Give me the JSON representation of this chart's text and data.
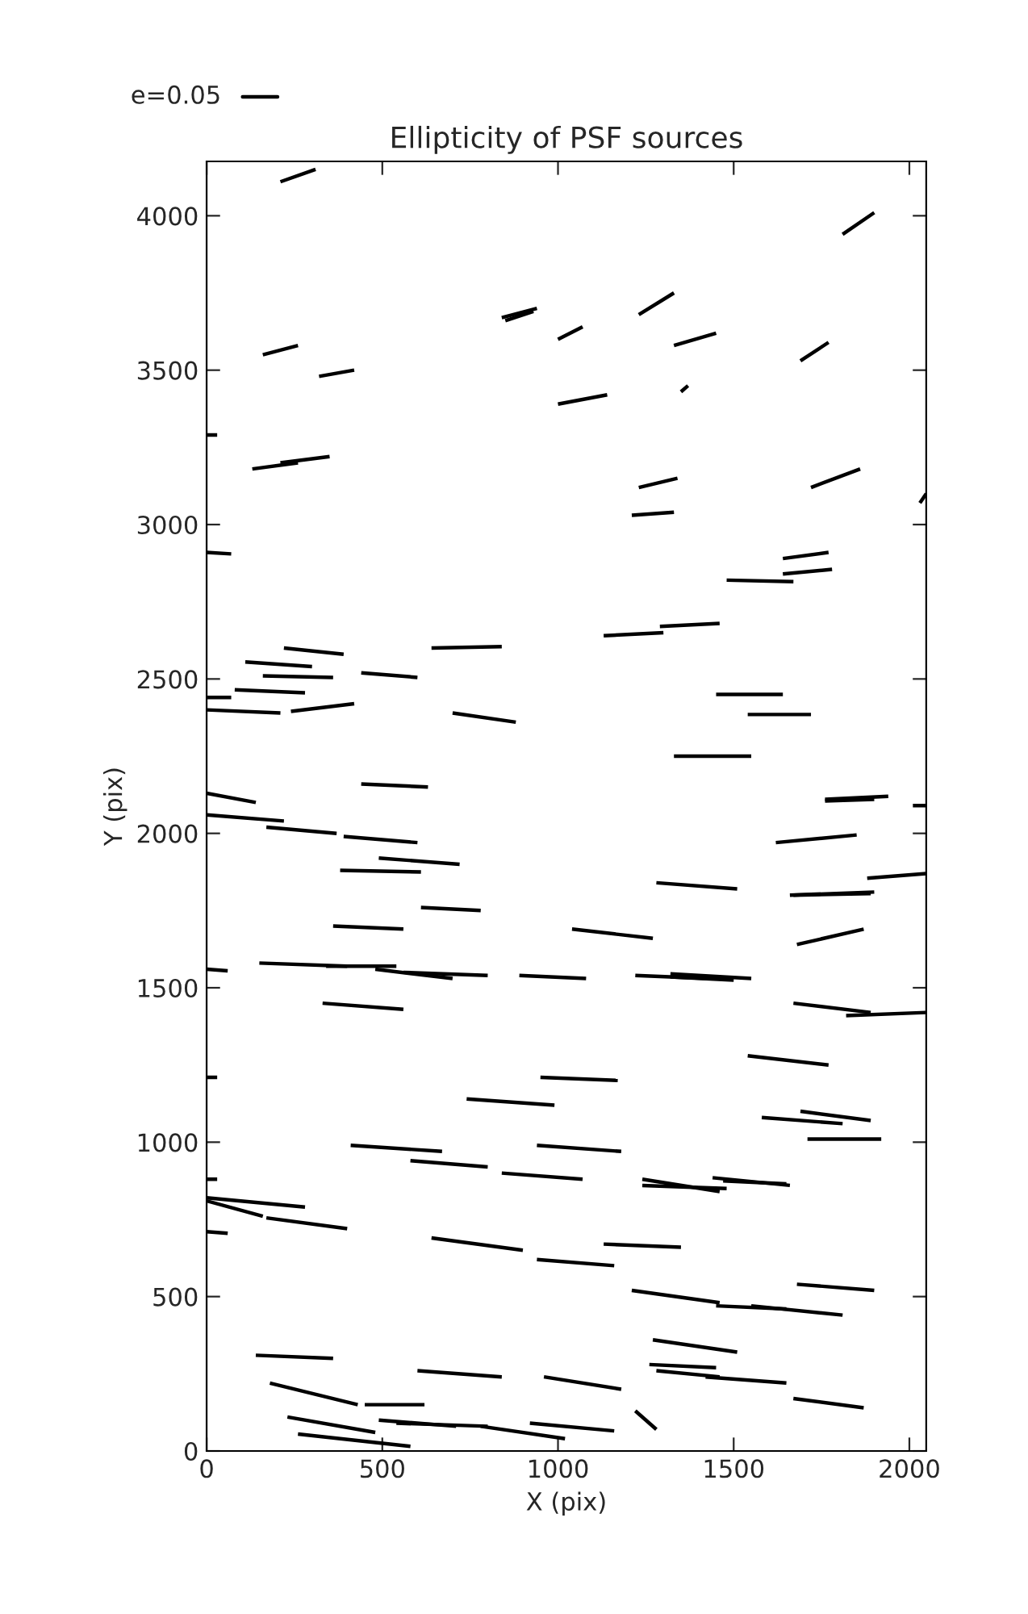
{
  "chart_data": {
    "type": "line",
    "title": "Ellipticity of PSF sources",
    "xlabel": "X (pix)",
    "ylabel": "Y (pix)",
    "xlim": [
      0,
      2048
    ],
    "ylim": [
      0,
      4176
    ],
    "xticks": [
      0,
      500,
      1000,
      1500,
      2000
    ],
    "yticks": [
      0,
      500,
      1000,
      1500,
      2000,
      2500,
      3000,
      3500,
      4000
    ],
    "grid": false,
    "annotations": [
      "e=0.05"
    ],
    "series": [
      {
        "color": "#000000",
        "x": [
          210,
          310
        ],
        "values": [
          4110,
          4150
        ]
      },
      {
        "color": "#000000",
        "x": [
          1810,
          1900
        ],
        "values": [
          3940,
          4010
        ]
      },
      {
        "color": "#000000",
        "x": [
          840,
          940
        ],
        "values": [
          3670,
          3700
        ]
      },
      {
        "color": "#000000",
        "x": [
          850,
          930
        ],
        "values": [
          3660,
          3690
        ]
      },
      {
        "color": "#000000",
        "x": [
          1000,
          1070
        ],
        "values": [
          3600,
          3640
        ]
      },
      {
        "color": "#000000",
        "x": [
          1230,
          1330
        ],
        "values": [
          3680,
          3750
        ]
      },
      {
        "color": "#000000",
        "x": [
          1330,
          1450
        ],
        "values": [
          3580,
          3620
        ]
      },
      {
        "color": "#000000",
        "x": [
          160,
          260
        ],
        "values": [
          3550,
          3580
        ]
      },
      {
        "color": "#000000",
        "x": [
          320,
          420
        ],
        "values": [
          3480,
          3500
        ]
      },
      {
        "color": "#000000",
        "x": [
          1000,
          1140
        ],
        "values": [
          3390,
          3420
        ]
      },
      {
        "color": "#000000",
        "x": [
          1350,
          1370
        ],
        "values": [
          3430,
          3450
        ]
      },
      {
        "color": "#000000",
        "x": [
          1690,
          1770
        ],
        "values": [
          3530,
          3590
        ]
      },
      {
        "color": "#000000",
        "x": [
          0,
          30
        ],
        "values": [
          3290,
          3290
        ]
      },
      {
        "color": "#000000",
        "x": [
          130,
          260
        ],
        "values": [
          3180,
          3200
        ]
      },
      {
        "color": "#000000",
        "x": [
          210,
          350
        ],
        "values": [
          3200,
          3220
        ]
      },
      {
        "color": "#000000",
        "x": [
          1230,
          1340
        ],
        "values": [
          3120,
          3150
        ]
      },
      {
        "color": "#000000",
        "x": [
          1720,
          1860
        ],
        "values": [
          3120,
          3180
        ]
      },
      {
        "color": "#000000",
        "x": [
          2030,
          2048
        ],
        "values": [
          3070,
          3100
        ]
      },
      {
        "color": "#000000",
        "x": [
          1210,
          1330
        ],
        "values": [
          3030,
          3040
        ]
      },
      {
        "color": "#000000",
        "x": [
          0,
          70
        ],
        "values": [
          2910,
          2905
        ]
      },
      {
        "color": "#000000",
        "x": [
          1480,
          1670
        ],
        "values": [
          2820,
          2815
        ]
      },
      {
        "color": "#000000",
        "x": [
          1640,
          1770
        ],
        "values": [
          2890,
          2910
        ]
      },
      {
        "color": "#000000",
        "x": [
          1640,
          1780
        ],
        "values": [
          2840,
          2855
        ]
      },
      {
        "color": "#000000",
        "x": [
          640,
          840
        ],
        "values": [
          2600,
          2605
        ]
      },
      {
        "color": "#000000",
        "x": [
          1130,
          1300
        ],
        "values": [
          2640,
          2650
        ]
      },
      {
        "color": "#000000",
        "x": [
          1290,
          1460
        ],
        "values": [
          2670,
          2680
        ]
      },
      {
        "color": "#000000",
        "x": [
          220,
          390
        ],
        "values": [
          2600,
          2580
        ]
      },
      {
        "color": "#000000",
        "x": [
          110,
          300
        ],
        "values": [
          2555,
          2540
        ]
      },
      {
        "color": "#000000",
        "x": [
          160,
          360
        ],
        "values": [
          2510,
          2505
        ]
      },
      {
        "color": "#000000",
        "x": [
          440,
          600
        ],
        "values": [
          2520,
          2505
        ]
      },
      {
        "color": "#000000",
        "x": [
          0,
          70
        ],
        "values": [
          2440,
          2440
        ]
      },
      {
        "color": "#000000",
        "x": [
          80,
          280
        ],
        "values": [
          2465,
          2455
        ]
      },
      {
        "color": "#000000",
        "x": [
          0,
          210
        ],
        "values": [
          2400,
          2390
        ]
      },
      {
        "color": "#000000",
        "x": [
          240,
          420
        ],
        "values": [
          2395,
          2420
        ]
      },
      {
        "color": "#000000",
        "x": [
          700,
          880
        ],
        "values": [
          2390,
          2360
        ]
      },
      {
        "color": "#000000",
        "x": [
          1450,
          1640
        ],
        "values": [
          2450,
          2450
        ]
      },
      {
        "color": "#000000",
        "x": [
          1540,
          1720
        ],
        "values": [
          2385,
          2385
        ]
      },
      {
        "color": "#000000",
        "x": [
          1330,
          1550
        ],
        "values": [
          2250,
          2250
        ]
      },
      {
        "color": "#000000",
        "x": [
          440,
          630
        ],
        "values": [
          2160,
          2150
        ]
      },
      {
        "color": "#000000",
        "x": [
          0,
          140
        ],
        "values": [
          2130,
          2100
        ]
      },
      {
        "color": "#000000",
        "x": [
          1760,
          1940
        ],
        "values": [
          2110,
          2120
        ]
      },
      {
        "color": "#000000",
        "x": [
          1760,
          1900
        ],
        "values": [
          2105,
          2110
        ]
      },
      {
        "color": "#000000",
        "x": [
          2010,
          2048
        ],
        "values": [
          2090,
          2090
        ]
      },
      {
        "color": "#000000",
        "x": [
          0,
          220
        ],
        "values": [
          2060,
          2040
        ]
      },
      {
        "color": "#000000",
        "x": [
          170,
          370
        ],
        "values": [
          2020,
          2000
        ]
      },
      {
        "color": "#000000",
        "x": [
          390,
          600
        ],
        "values": [
          1990,
          1970
        ]
      },
      {
        "color": "#000000",
        "x": [
          490,
          720
        ],
        "values": [
          1920,
          1900
        ]
      },
      {
        "color": "#000000",
        "x": [
          380,
          610
        ],
        "values": [
          1880,
          1875
        ]
      },
      {
        "color": "#000000",
        "x": [
          1280,
          1510
        ],
        "values": [
          1840,
          1820
        ]
      },
      {
        "color": "#000000",
        "x": [
          1620,
          1850
        ],
        "values": [
          1970,
          1995
        ]
      },
      {
        "color": "#000000",
        "x": [
          1880,
          2048
        ],
        "values": [
          1855,
          1870
        ]
      },
      {
        "color": "#000000",
        "x": [
          1660,
          1900
        ],
        "values": [
          1800,
          1810
        ]
      },
      {
        "color": "#000000",
        "x": [
          1670,
          1890
        ],
        "values": [
          1800,
          1805
        ]
      },
      {
        "color": "#000000",
        "x": [
          610,
          780
        ],
        "values": [
          1760,
          1750
        ]
      },
      {
        "color": "#000000",
        "x": [
          360,
          560
        ],
        "values": [
          1700,
          1690
        ]
      },
      {
        "color": "#000000",
        "x": [
          1040,
          1270
        ],
        "values": [
          1690,
          1660
        ]
      },
      {
        "color": "#000000",
        "x": [
          1680,
          1870
        ],
        "values": [
          1640,
          1690
        ]
      },
      {
        "color": "#000000",
        "x": [
          0,
          60
        ],
        "values": [
          1560,
          1555
        ]
      },
      {
        "color": "#000000",
        "x": [
          150,
          400
        ],
        "values": [
          1580,
          1570
        ]
      },
      {
        "color": "#000000",
        "x": [
          340,
          540
        ],
        "values": [
          1570,
          1570
        ]
      },
      {
        "color": "#000000",
        "x": [
          480,
          700
        ],
        "values": [
          1560,
          1530
        ]
      },
      {
        "color": "#000000",
        "x": [
          560,
          800
        ],
        "values": [
          1550,
          1540
        ]
      },
      {
        "color": "#000000",
        "x": [
          890,
          1080
        ],
        "values": [
          1540,
          1530
        ]
      },
      {
        "color": "#000000",
        "x": [
          1220,
          1430
        ],
        "values": [
          1540,
          1530
        ]
      },
      {
        "color": "#000000",
        "x": [
          1320,
          1550
        ],
        "values": [
          1545,
          1530
        ]
      },
      {
        "color": "#000000",
        "x": [
          1320,
          1500
        ],
        "values": [
          1535,
          1525
        ]
      },
      {
        "color": "#000000",
        "x": [
          1670,
          1890
        ],
        "values": [
          1450,
          1420
        ]
      },
      {
        "color": "#000000",
        "x": [
          1820,
          2048
        ],
        "values": [
          1410,
          1420
        ]
      },
      {
        "color": "#000000",
        "x": [
          330,
          560
        ],
        "values": [
          1450,
          1430
        ]
      },
      {
        "color": "#000000",
        "x": [
          0,
          30
        ],
        "values": [
          1210,
          1210
        ]
      },
      {
        "color": "#000000",
        "x": [
          950,
          1170
        ],
        "values": [
          1210,
          1200
        ]
      },
      {
        "color": "#000000",
        "x": [
          1540,
          1770
        ],
        "values": [
          1280,
          1250
        ]
      },
      {
        "color": "#000000",
        "x": [
          740,
          990
        ],
        "values": [
          1140,
          1120
        ]
      },
      {
        "color": "#000000",
        "x": [
          1580,
          1810
        ],
        "values": [
          1080,
          1060
        ]
      },
      {
        "color": "#000000",
        "x": [
          1690,
          1890
        ],
        "values": [
          1100,
          1070
        ]
      },
      {
        "color": "#000000",
        "x": [
          1710,
          1920
        ],
        "values": [
          1010,
          1010
        ]
      },
      {
        "color": "#000000",
        "x": [
          410,
          670
        ],
        "values": [
          990,
          970
        ]
      },
      {
        "color": "#000000",
        "x": [
          580,
          800
        ],
        "values": [
          940,
          920
        ]
      },
      {
        "color": "#000000",
        "x": [
          940,
          1180
        ],
        "values": [
          990,
          970
        ]
      },
      {
        "color": "#000000",
        "x": [
          840,
          1070
        ],
        "values": [
          900,
          880
        ]
      },
      {
        "color": "#000000",
        "x": [
          1240,
          1460
        ],
        "values": [
          880,
          840
        ]
      },
      {
        "color": "#000000",
        "x": [
          1240,
          1480
        ],
        "values": [
          860,
          850
        ]
      },
      {
        "color": "#000000",
        "x": [
          1440,
          1660
        ],
        "values": [
          885,
          860
        ]
      },
      {
        "color": "#000000",
        "x": [
          1470,
          1650
        ],
        "values": [
          875,
          865
        ]
      },
      {
        "color": "#000000",
        "x": [
          0,
          30
        ],
        "values": [
          880,
          880
        ]
      },
      {
        "color": "#000000",
        "x": [
          0,
          280
        ],
        "values": [
          820,
          790
        ]
      },
      {
        "color": "#000000",
        "x": [
          0,
          160
        ],
        "values": [
          810,
          760
        ]
      },
      {
        "color": "#000000",
        "x": [
          170,
          400
        ],
        "values": [
          755,
          720
        ]
      },
      {
        "color": "#000000",
        "x": [
          0,
          60
        ],
        "values": [
          710,
          705
        ]
      },
      {
        "color": "#000000",
        "x": [
          640,
          900
        ],
        "values": [
          690,
          650
        ]
      },
      {
        "color": "#000000",
        "x": [
          940,
          1160
        ],
        "values": [
          620,
          600
        ]
      },
      {
        "color": "#000000",
        "x": [
          1130,
          1350
        ],
        "values": [
          670,
          660
        ]
      },
      {
        "color": "#000000",
        "x": [
          1210,
          1460
        ],
        "values": [
          520,
          480
        ]
      },
      {
        "color": "#000000",
        "x": [
          1450,
          1650
        ],
        "values": [
          470,
          460
        ]
      },
      {
        "color": "#000000",
        "x": [
          1550,
          1810
        ],
        "values": [
          470,
          440
        ]
      },
      {
        "color": "#000000",
        "x": [
          1680,
          1900
        ],
        "values": [
          540,
          520
        ]
      },
      {
        "color": "#000000",
        "x": [
          140,
          360
        ],
        "values": [
          310,
          300
        ]
      },
      {
        "color": "#000000",
        "x": [
          1270,
          1510
        ],
        "values": [
          360,
          320
        ]
      },
      {
        "color": "#000000",
        "x": [
          1260,
          1450
        ],
        "values": [
          280,
          270
        ]
      },
      {
        "color": "#000000",
        "x": [
          1280,
          1460
        ],
        "values": [
          260,
          240
        ]
      },
      {
        "color": "#000000",
        "x": [
          1420,
          1650
        ],
        "values": [
          240,
          220
        ]
      },
      {
        "color": "#000000",
        "x": [
          1670,
          1870
        ],
        "values": [
          170,
          140
        ]
      },
      {
        "color": "#000000",
        "x": [
          180,
          430
        ],
        "values": [
          220,
          150
        ]
      },
      {
        "color": "#000000",
        "x": [
          450,
          620
        ],
        "values": [
          150,
          150
        ]
      },
      {
        "color": "#000000",
        "x": [
          600,
          840
        ],
        "values": [
          260,
          240
        ]
      },
      {
        "color": "#000000",
        "x": [
          960,
          1180
        ],
        "values": [
          240,
          200
        ]
      },
      {
        "color": "#000000",
        "x": [
          230,
          480
        ],
        "values": [
          110,
          60
        ]
      },
      {
        "color": "#000000",
        "x": [
          490,
          710
        ],
        "values": [
          100,
          80
        ]
      },
      {
        "color": "#000000",
        "x": [
          540,
          800
        ],
        "values": [
          90,
          80
        ]
      },
      {
        "color": "#000000",
        "x": [
          780,
          1020
        ],
        "values": [
          80,
          40
        ]
      },
      {
        "color": "#000000",
        "x": [
          920,
          1160
        ],
        "values": [
          90,
          65
        ]
      },
      {
        "color": "#000000",
        "x": [
          260,
          580
        ],
        "values": [
          55,
          15
        ]
      },
      {
        "color": "#000000",
        "x": [
          1220,
          1280
        ],
        "values": [
          130,
          70
        ]
      }
    ]
  }
}
